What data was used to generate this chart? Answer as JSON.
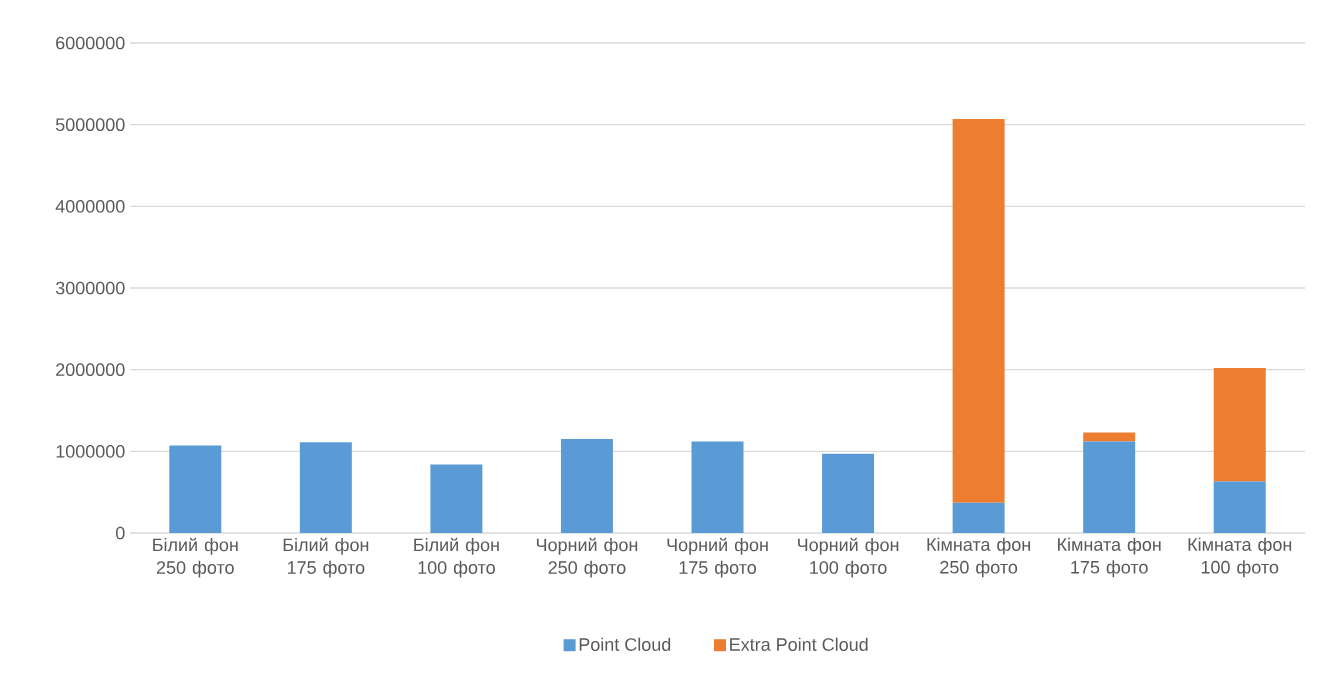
{
  "chart_data": {
    "type": "bar",
    "stacked": true,
    "categories": [
      "Білий фон 250 фото",
      "Білий фон 175 фото",
      "Білий фон 100 фото",
      "Чорний фон 250 фото",
      "Чорний фон 175 фото",
      "Чорний фон 100 фото",
      "Кімната фон 250 фото",
      "Кімната фон 175 фото",
      "Кімната фон 100 фото"
    ],
    "series": [
      {
        "name": "Point Cloud",
        "color": "#5b9bd5",
        "values": [
          1070000,
          1110000,
          840000,
          1150000,
          1120000,
          970000,
          370000,
          1120000,
          630000
        ]
      },
      {
        "name": "Extra Point Cloud",
        "color": "#ed7d31",
        "values": [
          null,
          null,
          null,
          null,
          null,
          null,
          4700000,
          110000,
          1390000
        ]
      }
    ],
    "ylim": [
      0,
      6000000
    ],
    "yticks": [
      0,
      1000000,
      2000000,
      3000000,
      4000000,
      5000000,
      6000000
    ],
    "grid": "y",
    "legend": "bottom"
  }
}
